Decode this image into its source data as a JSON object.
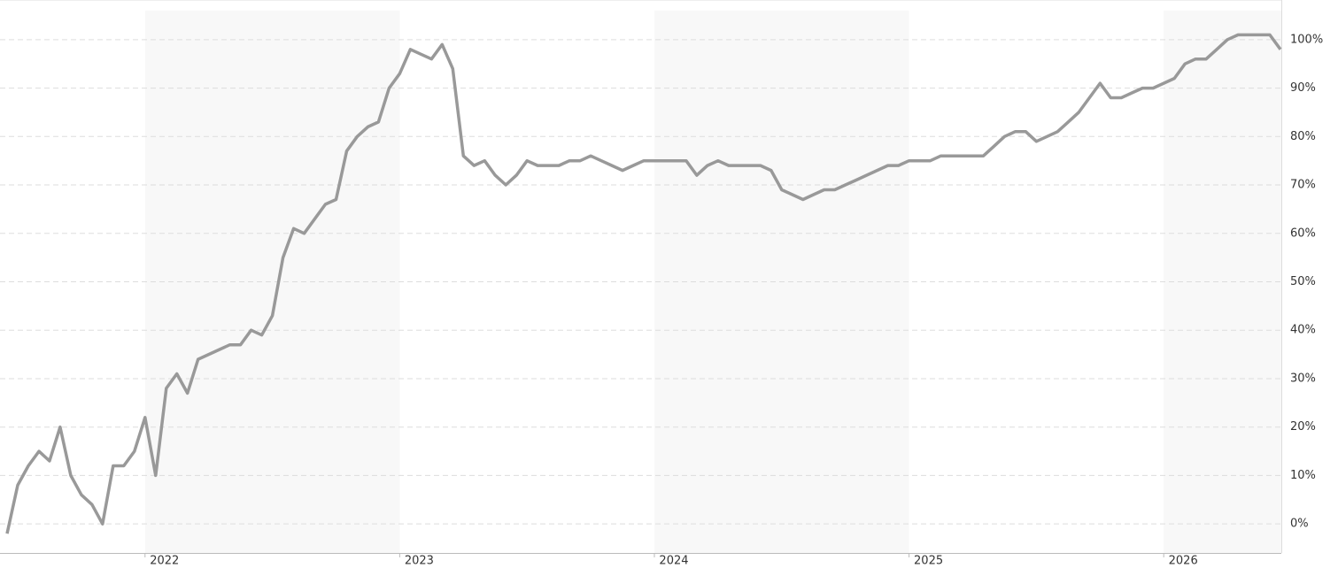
{
  "chart_data": {
    "type": "line",
    "categories": [
      null,
      null,
      null,
      null,
      null,
      null,
      null,
      null,
      null,
      null,
      null,
      null,
      null,
      "2022",
      null,
      null,
      null,
      null,
      null,
      null,
      null,
      null,
      null,
      null,
      null,
      null,
      null,
      null,
      null,
      null,
      null,
      null,
      null,
      null,
      null,
      null,
      null,
      "2023",
      null,
      null,
      null,
      null,
      null,
      null,
      null,
      null,
      null,
      null,
      null,
      null,
      null,
      null,
      null,
      null,
      null,
      null,
      null,
      null,
      null,
      null,
      null,
      "2024",
      null,
      null,
      null,
      null,
      null,
      null,
      null,
      null,
      null,
      null,
      null,
      null,
      null,
      null,
      null,
      null,
      null,
      null,
      null,
      null,
      null,
      null,
      null,
      "2025",
      null,
      null,
      null,
      null,
      null,
      null,
      null,
      null,
      null,
      null,
      null,
      null,
      null,
      null,
      null,
      null,
      null,
      null,
      null,
      null,
      null,
      null,
      null,
      "2026",
      null,
      null,
      null,
      null,
      null,
      null,
      null,
      null,
      null,
      null,
      null
    ],
    "values": [
      -2,
      8,
      12,
      15,
      13,
      20,
      10,
      6,
      4,
      0,
      12,
      12,
      15,
      22,
      10,
      28,
      31,
      27,
      34,
      35,
      36,
      37,
      37,
      40,
      39,
      43,
      55,
      61,
      60,
      63,
      66,
      67,
      77,
      80,
      82,
      83,
      90,
      93,
      98,
      97,
      96,
      99,
      94,
      76,
      74,
      75,
      72,
      70,
      72,
      75,
      74,
      74,
      74,
      75,
      75,
      76,
      75,
      74,
      73,
      74,
      75,
      75,
      75,
      75,
      75,
      72,
      74,
      75,
      74,
      74,
      74,
      74,
      73,
      69,
      68,
      67,
      68,
      69,
      69,
      70,
      71,
      72,
      73,
      74,
      74,
      75,
      75,
      75,
      76,
      76,
      76,
      76,
      76,
      78,
      80,
      81,
      81,
      79,
      80,
      81,
      83,
      85,
      88,
      91,
      88,
      88,
      89,
      90,
      90,
      91,
      92,
      95,
      96,
      96,
      98,
      100,
      101,
      101,
      101,
      101,
      98
    ],
    "color": "#999999",
    "ylim": [
      -6,
      106
    ],
    "yticks": [
      {
        "value": 0,
        "label": "0%"
      },
      {
        "value": 10,
        "label": "10%"
      },
      {
        "value": 20,
        "label": "20%"
      },
      {
        "value": 30,
        "label": "30%"
      },
      {
        "value": 40,
        "label": "40%"
      },
      {
        "value": 50,
        "label": "50%"
      },
      {
        "value": 60,
        "label": "60%"
      },
      {
        "value": 70,
        "label": "70%"
      },
      {
        "value": 80,
        "label": "80%"
      },
      {
        "value": 90,
        "label": "90%"
      },
      {
        "value": 100,
        "label": "100%"
      }
    ],
    "grid": true
  }
}
